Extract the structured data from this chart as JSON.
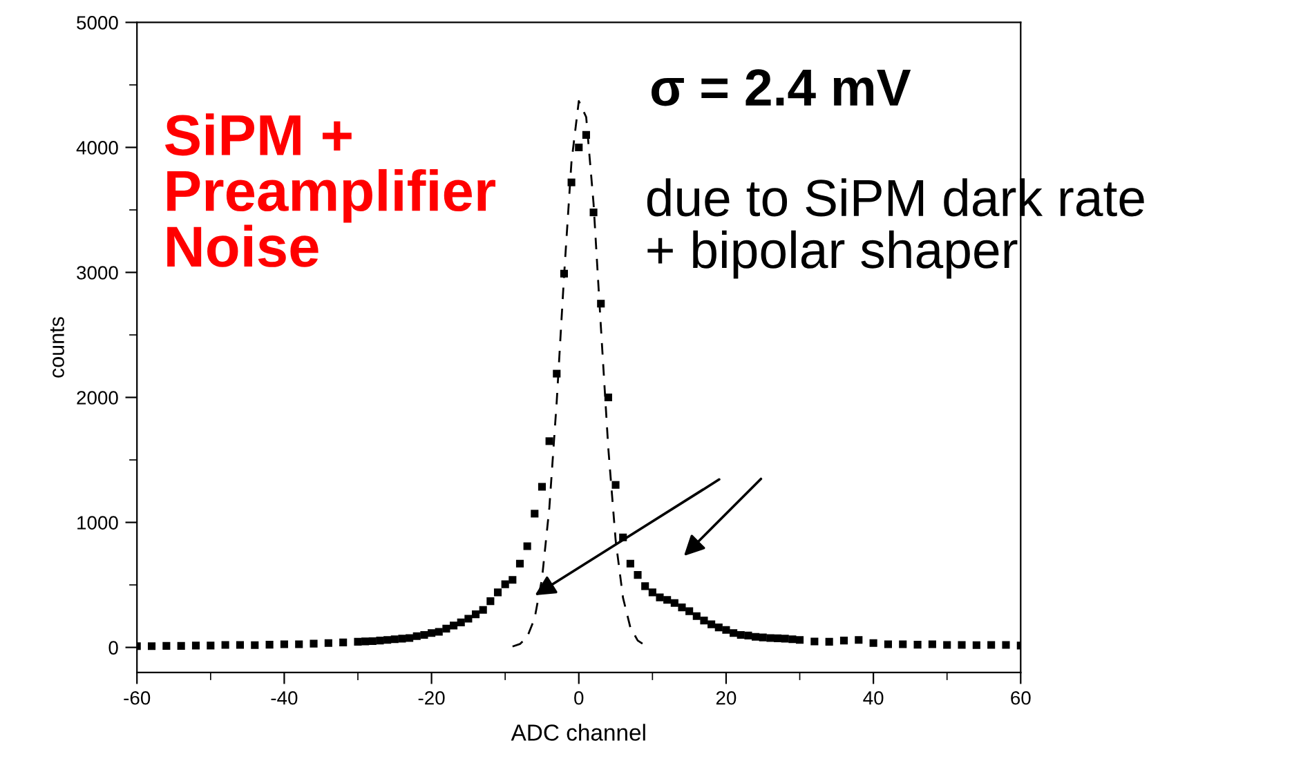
{
  "chart_data": {
    "type": "scatter",
    "xlabel": "ADC channel",
    "ylabel": "counts",
    "x": [
      -60,
      -58,
      -56,
      -54,
      -52,
      -50,
      -48,
      -46,
      -44,
      -42,
      -40,
      -38,
      -36,
      -34,
      -32,
      -30,
      -29,
      -28,
      -27,
      -26,
      -25,
      -24,
      -23,
      -22,
      -21,
      -20,
      -19,
      -18,
      -17,
      -16,
      -15,
      -14,
      -13,
      -12,
      -11,
      -10,
      -9,
      -8,
      -7,
      -6,
      -5,
      -4,
      -3,
      -2,
      -1,
      0,
      1,
      2,
      3,
      4,
      5,
      6,
      7,
      8,
      9,
      10,
      11,
      12,
      13,
      14,
      15,
      16,
      17,
      18,
      19,
      20,
      21,
      22,
      23,
      24,
      25,
      26,
      27,
      28,
      29,
      30,
      32,
      34,
      36,
      38,
      40,
      42,
      44,
      46,
      48,
      50,
      52,
      54,
      56,
      58,
      60
    ],
    "series": [
      {
        "color": "#000000",
        "marker": "square",
        "values": [
          10,
          10,
          12,
          12,
          15,
          15,
          20,
          20,
          18,
          22,
          25,
          25,
          30,
          35,
          40,
          45,
          48,
          50,
          55,
          60,
          65,
          70,
          75,
          90,
          100,
          115,
          125,
          150,
          175,
          200,
          230,
          265,
          300,
          370,
          440,
          505,
          540,
          670,
          810,
          1070,
          1285,
          1650,
          2190,
          2990,
          3720,
          4000,
          4100,
          3480,
          2750,
          2000,
          1300,
          880,
          670,
          580,
          490,
          440,
          400,
          380,
          355,
          320,
          290,
          250,
          215,
          185,
          160,
          140,
          115,
          100,
          95,
          85,
          80,
          75,
          73,
          70,
          65,
          60,
          47,
          45,
          55,
          60,
          35,
          25,
          25,
          22,
          25,
          20,
          20,
          18,
          20,
          20,
          15
        ]
      },
      {
        "type": "line",
        "color": "#000000",
        "line_style": "dashed",
        "marker": "none",
        "x": [
          -9,
          -8,
          -7,
          -6,
          -5,
          -4,
          -3,
          -2,
          -1,
          0,
          1,
          2,
          3,
          4,
          5,
          6,
          7,
          8,
          9
        ],
        "values": [
          7,
          27,
          85,
          233,
          550,
          1118,
          1967,
          2976,
          3882,
          4371,
          4243,
          3552,
          2561,
          1596,
          858,
          397,
          159,
          55,
          16
        ]
      }
    ],
    "xlim": [
      -60,
      60
    ],
    "xticks": [
      -60,
      -40,
      -20,
      0,
      20,
      40,
      60
    ],
    "ylim": [
      -200,
      5000
    ],
    "yticks": [
      0,
      1000,
      2000,
      3000,
      4000,
      5000
    ],
    "grid": false,
    "legend": false,
    "annotations": [
      "SiPM +\nPreamplifier\nNoise",
      "σ = 2.4 mV",
      "due to SiPM dark rate\n+ bipolar shaper"
    ]
  }
}
